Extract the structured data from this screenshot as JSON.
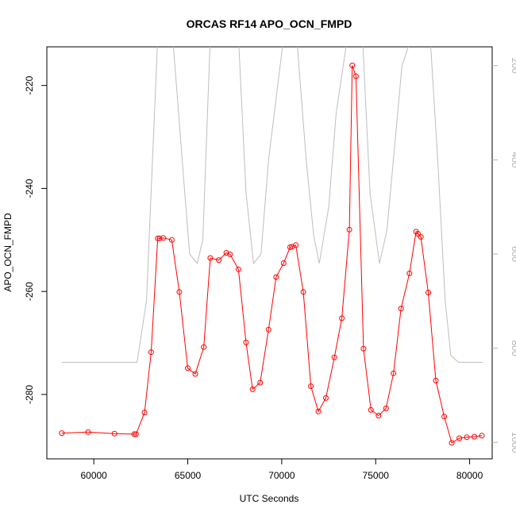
{
  "chart_data": {
    "type": "line",
    "title": "ORCAS RF14 APO_OCN_FMPD",
    "xlabel": "UTC Seconds",
    "ylabel": "APO_OCN_FMPD",
    "xlim": [
      57500,
      81200
    ],
    "ylim": [
      -292.5,
      -212.5
    ],
    "x_ticks": [
      60000,
      65000,
      70000,
      75000,
      80000
    ],
    "y_ticks": [
      -280,
      -260,
      -240,
      -220
    ],
    "right_axis": {
      "range_top": 160,
      "range_bottom": 1035,
      "ticks": [
        200,
        400,
        600,
        800,
        1000
      ],
      "color": "#b3b3b3"
    },
    "series": [
      {
        "name": "",
        "color": "#ff0000",
        "markers": "open-circle",
        "x": [
          58300,
          59700,
          61100,
          62150,
          62250,
          62700,
          63050,
          63400,
          63500,
          63700,
          64150,
          64550,
          65000,
          65400,
          65850,
          66200,
          66650,
          67050,
          67250,
          67700,
          68100,
          68450,
          68850,
          69300,
          69700,
          70100,
          70450,
          70550,
          70750,
          71150,
          71550,
          71950,
          72350,
          72800,
          73200,
          73600,
          73750,
          73950,
          74350,
          74750,
          75150,
          75550,
          75950,
          76350,
          76800,
          77150,
          77250,
          77400,
          77800,
          78200,
          78650,
          79050,
          79450,
          79850,
          80250,
          80650
        ],
        "y": [
          -287.5,
          -287.3,
          -287.6,
          -287.7,
          -287.7,
          -283.5,
          -271.8,
          -249.7,
          -249.7,
          -249.6,
          -250.0,
          -260.1,
          -274.9,
          -276.0,
          -270.8,
          -253.5,
          -253.9,
          -252.5,
          -252.8,
          -255.7,
          -269.9,
          -279.0,
          -277.7,
          -267.4,
          -257.2,
          -254.5,
          -251.4,
          -251.3,
          -251.0,
          -260.1,
          -278.4,
          -283.3,
          -280.7,
          -272.8,
          -265.2,
          -248.0,
          -216.1,
          -218.2,
          -271.1,
          -283.0,
          -284.1,
          -282.7,
          -275.9,
          -263.3,
          -256.5,
          -248.4,
          -248.8,
          -249.4,
          -260.2,
          -277.3,
          -284.3,
          -289.4,
          -288.5,
          -288.3,
          -288.2,
          -288.0
        ]
      },
      {
        "name": "",
        "color": "#bebebe",
        "axis": "right",
        "x": [
          58300,
          62300,
          62800,
          63400,
          63500,
          64200,
          64800,
          65100,
          65500,
          65800,
          66200,
          66300,
          67000,
          67700,
          68100,
          68500,
          68900,
          69300,
          70100,
          70500,
          70800,
          71300,
          71700,
          72000,
          72500,
          72900,
          73500,
          73600,
          74300,
          74700,
          75200,
          75600,
          76400,
          76900,
          77500,
          77900,
          78300,
          78700,
          79000,
          79400,
          80700
        ],
        "y": [
          830,
          830,
          700,
          140,
          140,
          140,
          450,
          600,
          620,
          570,
          140,
          140,
          140,
          140,
          470,
          620,
          600,
          400,
          140,
          140,
          140,
          400,
          560,
          620,
          500,
          300,
          140,
          140,
          140,
          470,
          620,
          550,
          200,
          140,
          140,
          140,
          400,
          700,
          815,
          830,
          830
        ]
      }
    ]
  }
}
